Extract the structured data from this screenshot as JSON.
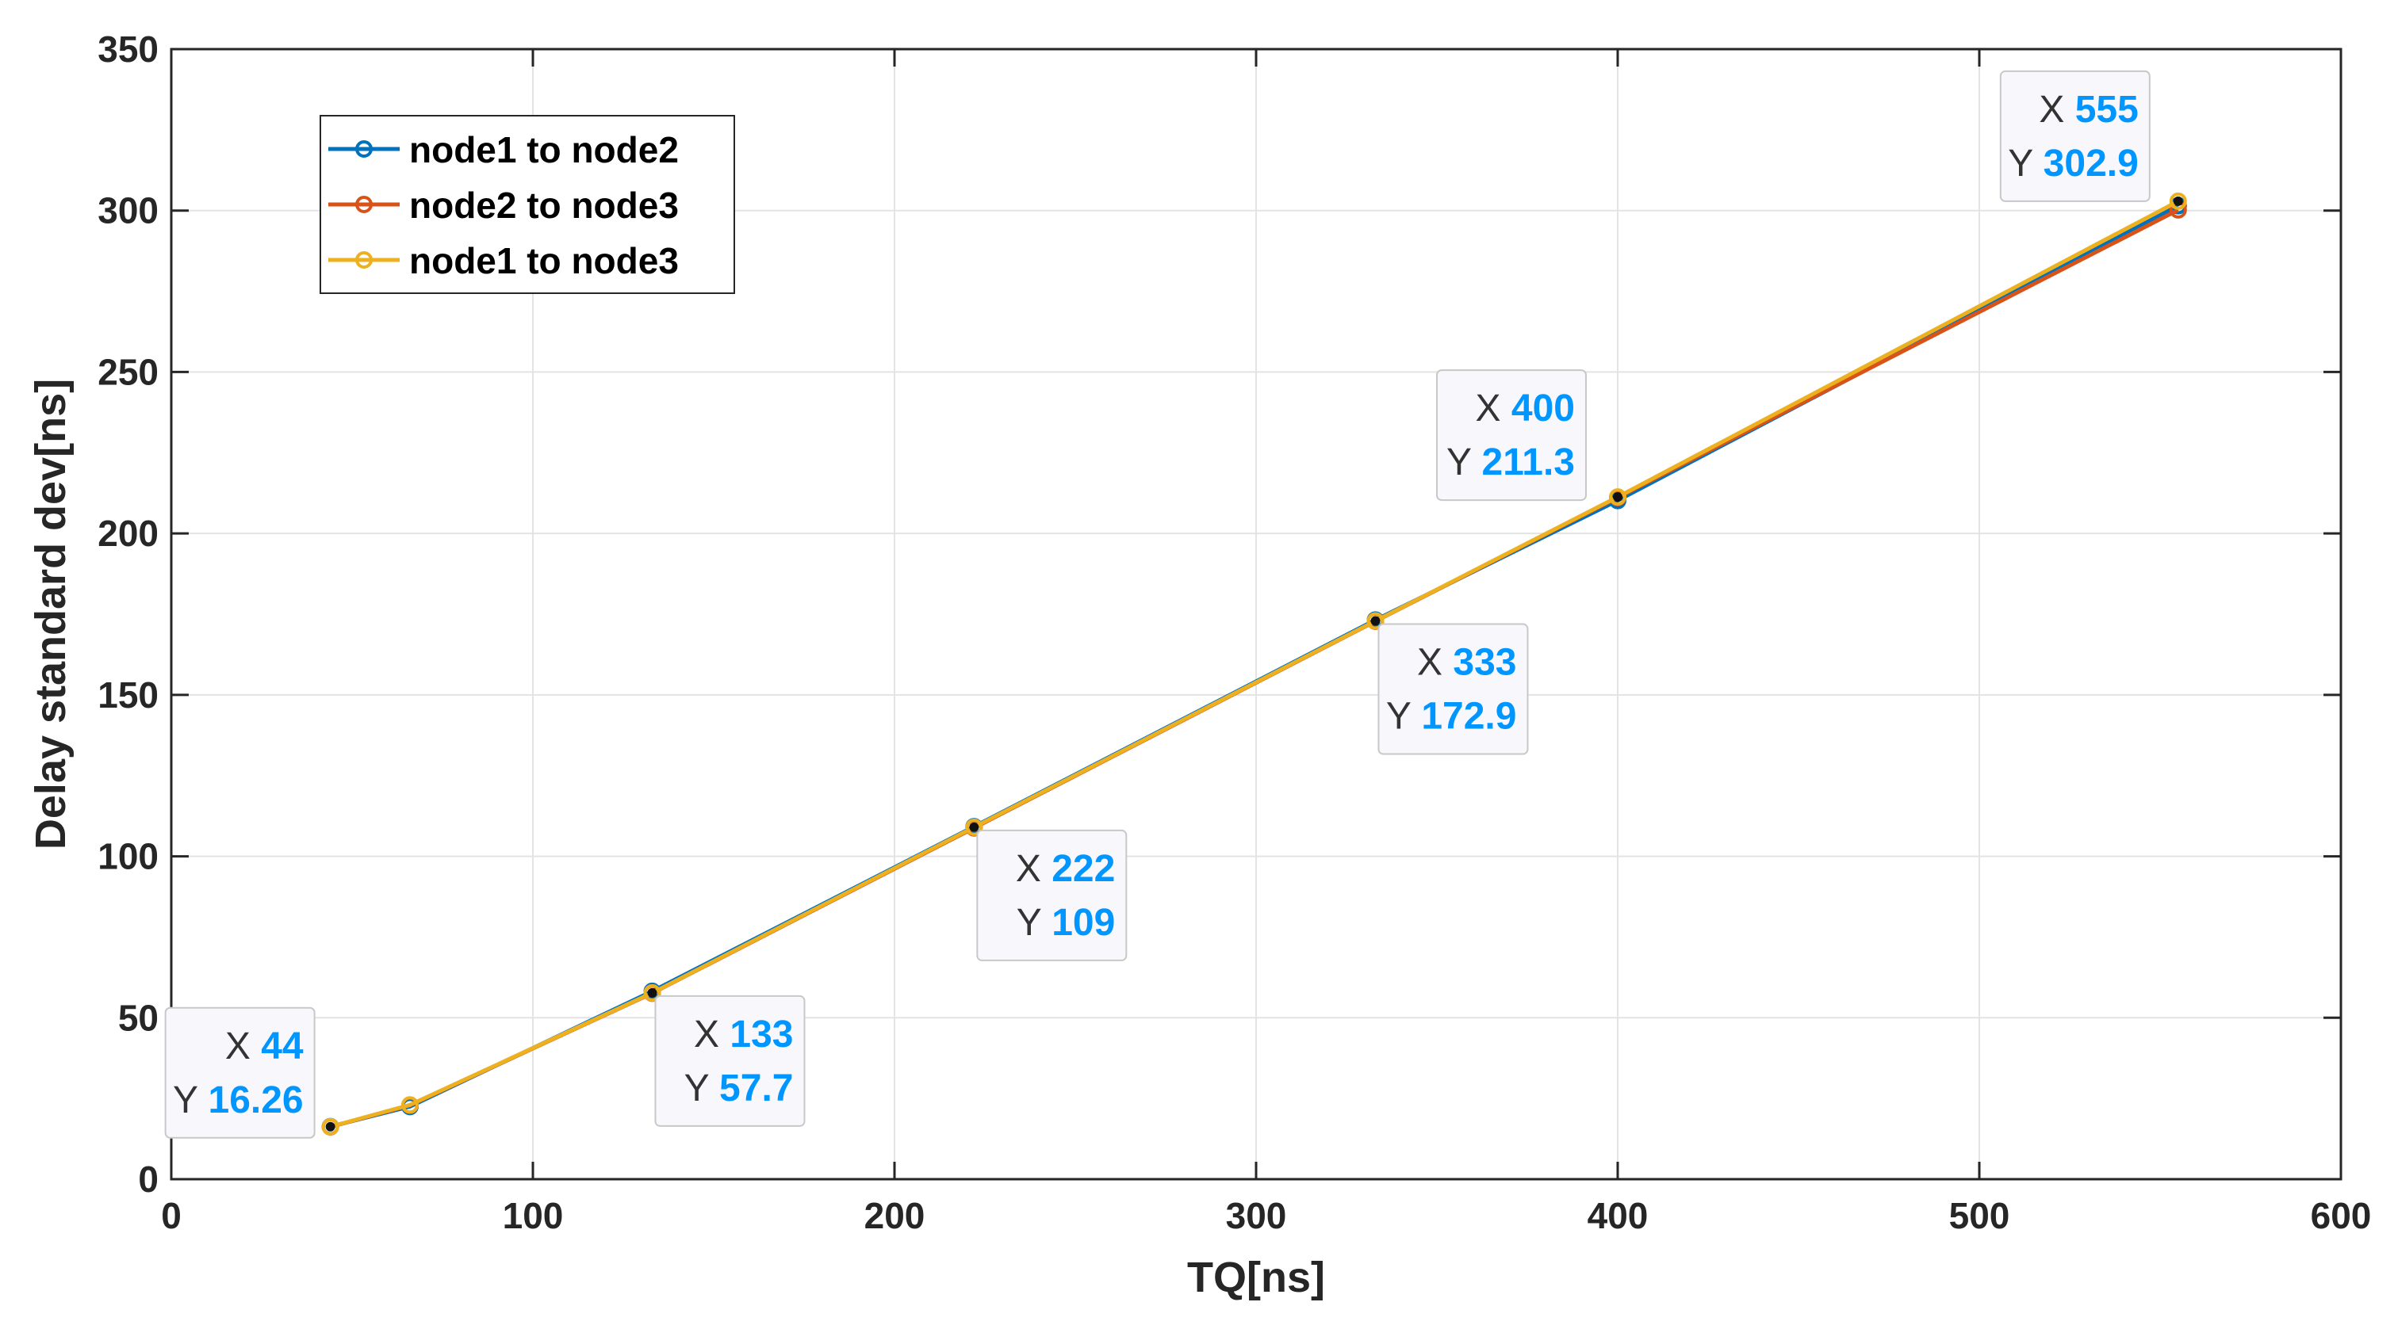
{
  "chart_data": {
    "type": "line",
    "title": "",
    "xlabel": "TQ[ns]",
    "ylabel": "Delay standard dev[ns]",
    "xlim": [
      0,
      600
    ],
    "ylim": [
      0,
      350
    ],
    "xticks": [
      "0",
      "100",
      "200",
      "300",
      "400",
      "500",
      "600"
    ],
    "yticks": [
      "0",
      "50",
      "100",
      "150",
      "200",
      "250",
      "300",
      "350"
    ],
    "grid": true,
    "legend_position": "top-left",
    "x": [
      44,
      66,
      133,
      222,
      333,
      400,
      555
    ],
    "series": [
      {
        "name": "node1 to node2",
        "color": "#0072BD",
        "values": [
          16.3,
          22.5,
          58.2,
          109.2,
          173.2,
          210.2,
          301.5
        ]
      },
      {
        "name": "node2 to node3",
        "color": "#D95319",
        "values": [
          16.2,
          22.9,
          57.6,
          108.8,
          172.8,
          211.1,
          300.2
        ]
      },
      {
        "name": "node1 to node3",
        "color": "#EDB120",
        "values": [
          16.26,
          23.0,
          57.7,
          109,
          172.9,
          211.3,
          302.9
        ]
      }
    ],
    "annotations": [
      {
        "x_label": "X",
        "x_value": "44",
        "y_label": "Y",
        "y_value": "16.26",
        "x": 44,
        "y": 16.26
      },
      {
        "x_label": "X",
        "x_value": "133",
        "y_label": "Y",
        "y_value": "57.7",
        "x": 133,
        "y": 57.7
      },
      {
        "x_label": "X",
        "x_value": "222",
        "y_label": "Y",
        "y_value": "109",
        "x": 222,
        "y": 109
      },
      {
        "x_label": "X",
        "x_value": "333",
        "y_label": "Y",
        "y_value": "172.9",
        "x": 333,
        "y": 172.9
      },
      {
        "x_label": "X",
        "x_value": "400",
        "y_label": "Y",
        "y_value": "211.3",
        "x": 400,
        "y": 211.3
      },
      {
        "x_label": "X",
        "x_value": "555",
        "y_label": "Y",
        "y_value": "302.9",
        "x": 555,
        "y": 302.9
      }
    ],
    "annotation_value_color": "#0096FF"
  }
}
